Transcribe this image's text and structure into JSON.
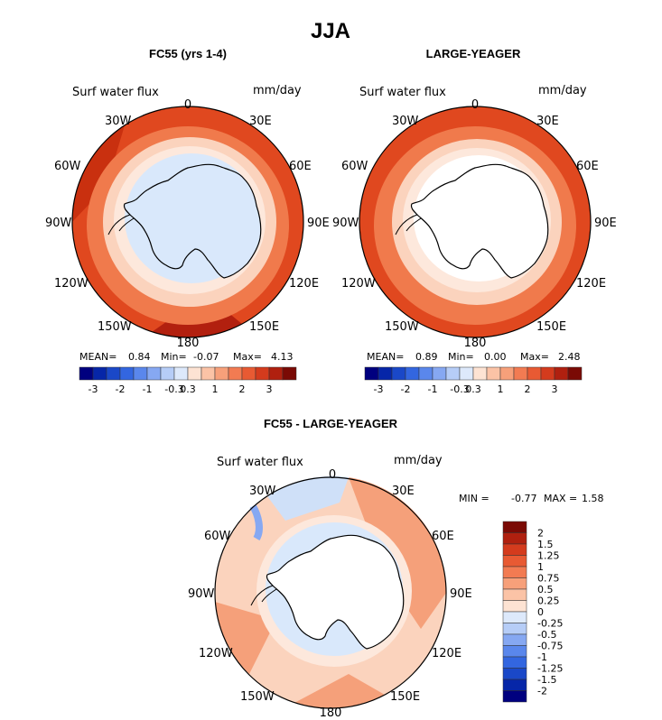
{
  "main_title": "JJA",
  "colors": {
    "ocean_deep_red": "#b2200f",
    "ocean_red": "#e0481f",
    "ocean_orange": "#f07a4c",
    "ring_light": "#fbd3bd",
    "ring_pale": "#fde8dc",
    "ice_blue": "#d9e8fb",
    "land_white": "#ffffff"
  },
  "chart_data": [
    {
      "type": "heatmap",
      "title": "FC55 (yrs 1-4)",
      "field_label": "Surf water flux",
      "units": "mm/day",
      "lon_labels": [
        "0",
        "30E",
        "60E",
        "90E",
        "120E",
        "150E",
        "180",
        "150W",
        "120W",
        "90W",
        "60W",
        "30W"
      ],
      "stats": {
        "mean_label": "MEAN=",
        "mean": "0.84",
        "min_label": "Min=",
        "min": "-0.07",
        "max_label": "Max=",
        "max": "4.13"
      },
      "colorbar": {
        "colors": [
          "#00007f",
          "#0626a8",
          "#1a48c8",
          "#3366e0",
          "#5a87ec",
          "#86a8f2",
          "#b6cdf7",
          "#dde9fb",
          "#fde3d3",
          "#fbc3a6",
          "#f7a07a",
          "#f27b52",
          "#e85a33",
          "#d43b1d",
          "#b0200f",
          "#7a0a05"
        ],
        "tick_labels": [
          "-3",
          "-2",
          "-1",
          "-0.3",
          "0.3",
          "1",
          "2",
          "3"
        ]
      }
    },
    {
      "type": "heatmap",
      "title": "LARGE-YEAGER",
      "field_label": "Surf water flux",
      "units": "mm/day",
      "lon_labels": [
        "0",
        "30E",
        "60E",
        "90E",
        "120E",
        "150E",
        "180",
        "150W",
        "120W",
        "90W",
        "60W",
        "30W"
      ],
      "stats": {
        "mean_label": "MEAN=",
        "mean": "0.89",
        "min_label": "Min=",
        "min": "0.00",
        "max_label": "Max=",
        "max": "2.48"
      },
      "colorbar": {
        "colors": [
          "#00007f",
          "#0626a8",
          "#1a48c8",
          "#3366e0",
          "#5a87ec",
          "#86a8f2",
          "#b6cdf7",
          "#dde9fb",
          "#fde3d3",
          "#fbc3a6",
          "#f7a07a",
          "#f27b52",
          "#e85a33",
          "#d43b1d",
          "#b0200f",
          "#7a0a05"
        ],
        "tick_labels": [
          "-3",
          "-2",
          "-1",
          "-0.3",
          "0.3",
          "1",
          "2",
          "3"
        ]
      }
    },
    {
      "type": "heatmap",
      "title": "FC55 - LARGE-YEAGER",
      "field_label": "Surf water flux",
      "units": "mm/day",
      "lon_labels": [
        "0",
        "30E",
        "60E",
        "90E",
        "120E",
        "150E",
        "180",
        "150W",
        "120W",
        "90W",
        "60W",
        "30W"
      ],
      "stats": {
        "min_label": "MIN =",
        "min": "-0.77",
        "max_label": "MAX =",
        "max": "1.58"
      },
      "colorbar": {
        "colors": [
          "#7a0a05",
          "#b0200f",
          "#d43b1d",
          "#e85a33",
          "#f27b52",
          "#f7a07a",
          "#fbc3a6",
          "#fde3d3",
          "#dde9fb",
          "#b6cdf7",
          "#86a8f2",
          "#5a87ec",
          "#3366e0",
          "#1a48c8",
          "#0626a8",
          "#00007f"
        ],
        "tick_labels": [
          "2",
          "1.5",
          "1.25",
          "1",
          "0.75",
          "0.5",
          "0.25",
          "0",
          "-0.25",
          "-0.5",
          "-0.75",
          "-1",
          "-1.25",
          "-1.5",
          "-2"
        ]
      }
    }
  ]
}
